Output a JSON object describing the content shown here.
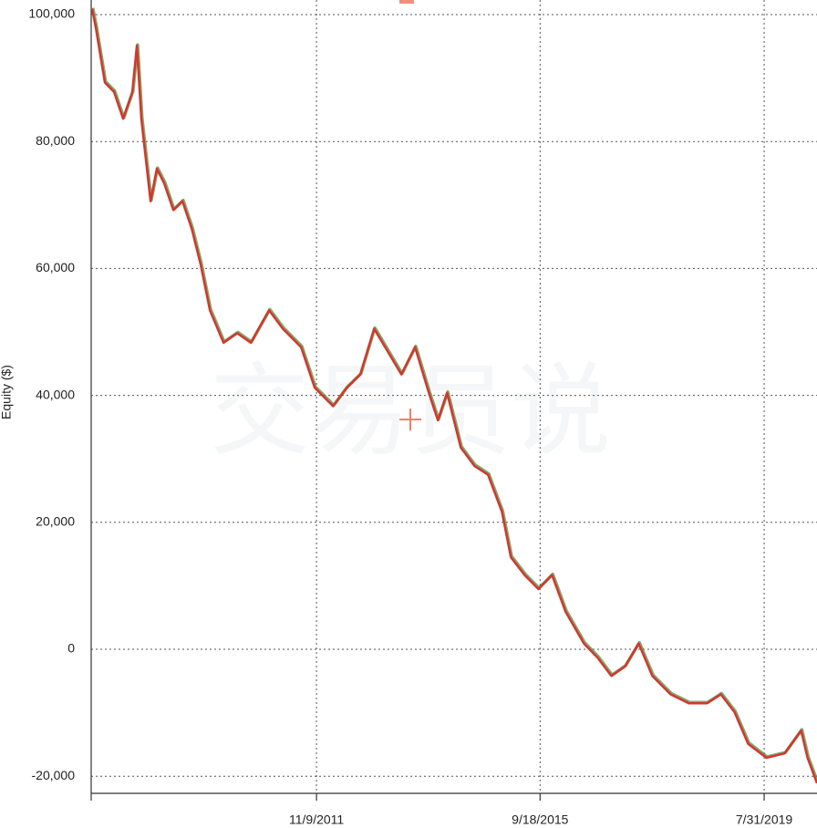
{
  "chart_data": {
    "type": "line",
    "y_label": "Equity ($)",
    "watermark": "交易员说",
    "color": "#d7352a",
    "grid": true,
    "x": [
      "2007-12-26",
      "2008-01-18",
      "2008-03-15",
      "2008-05-12",
      "2008-07-08",
      "2008-09-04",
      "2008-10-03",
      "2008-10-31",
      "2008-12-28",
      "2009-02-06",
      "2009-03-24",
      "2009-05-21",
      "2009-07-17",
      "2009-09-13",
      "2009-11-09",
      "2010-01-06",
      "2010-04-02",
      "2010-06-27",
      "2010-09-21",
      "2011-01-14",
      "2011-04-11",
      "2011-08-04",
      "2011-10-29",
      "2012-02-21",
      "2012-05-17",
      "2012-08-11",
      "2012-11-06",
      "2013-01-31",
      "2013-04-27",
      "2013-07-22",
      "2013-10-17",
      "2013-12-13",
      "2014-02-09",
      "2014-05-06",
      "2014-07-31",
      "2014-10-25",
      "2015-01-20",
      "2015-03-18",
      "2015-06-12",
      "2015-09-07",
      "2015-12-02",
      "2016-02-26",
      "2016-06-20",
      "2016-09-14",
      "2016-12-10",
      "2017-03-06",
      "2017-05-31",
      "2017-08-25",
      "2017-12-18",
      "2018-04-12",
      "2018-08-05",
      "2018-10-31",
      "2019-01-25",
      "2019-04-21",
      "2019-08-14",
      "2019-12-07",
      "2020-03-20",
      "2020-04-29",
      "2020-06-28"
    ],
    "values": [
      100900,
      98000,
      89300,
      87800,
      83600,
      87800,
      95100,
      83600,
      70600,
      75700,
      73400,
      69200,
      70600,
      66300,
      60600,
      53400,
      48300,
      49800,
      48300,
      53400,
      50500,
      47600,
      41200,
      38300,
      41200,
      43300,
      50500,
      46900,
      43300,
      47600,
      40400,
      36100,
      40400,
      31800,
      28900,
      27500,
      21700,
      14500,
      11700,
      9500,
      11700,
      5900,
      900,
      -1300,
      -4200,
      -2700,
      900,
      -4200,
      -7100,
      -8500,
      -8500,
      -7100,
      -9900,
      -14900,
      -17100,
      -16400,
      -12800,
      -17100,
      -21100
    ],
    "xlim": [
      "2007-12-20",
      "2020-06-28"
    ],
    "xticks": [
      {
        "value": "2011-11-09",
        "label": "11/9/2011"
      },
      {
        "value": "2015-09-18",
        "label": "9/18/2015"
      },
      {
        "value": "2019-07-31",
        "label": "7/31/2019"
      }
    ],
    "ylim": [
      -22700,
      102300
    ],
    "yticks": [
      {
        "value": 100000,
        "label": "100,000"
      },
      {
        "value": 80000,
        "label": "80,000"
      },
      {
        "value": 60000,
        "label": "60,000"
      },
      {
        "value": 40000,
        "label": "40,000"
      },
      {
        "value": 20000,
        "label": "20,000"
      },
      0,
      {
        "value": -20000,
        "label": "-20,000"
      }
    ]
  }
}
